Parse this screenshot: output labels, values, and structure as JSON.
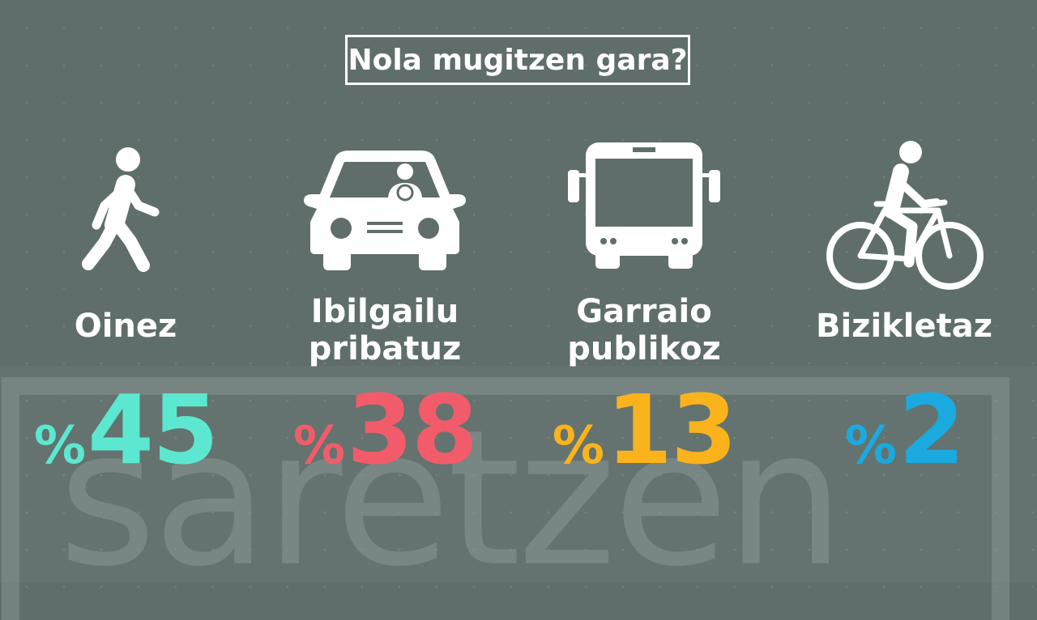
{
  "title": "Nola mugitzen gara?",
  "watermark": "saretzen",
  "categories": [
    {
      "label_line1": "Oinez",
      "label_line2": "",
      "percent_sign": "%",
      "value": "45",
      "color": "#5ce8d0",
      "icon": "walking-person-icon"
    },
    {
      "label_line1": "Ibilgailu",
      "label_line2": "pribatuz",
      "percent_sign": "%",
      "value": "38",
      "color": "#f25c6a",
      "icon": "car-icon"
    },
    {
      "label_line1": "Garraio",
      "label_line2": "publikoz",
      "percent_sign": "%",
      "value": "13",
      "color": "#fbb31c",
      "icon": "bus-icon"
    },
    {
      "label_line1": "Bizikletaz",
      "label_line2": "",
      "percent_sign": "%",
      "value": "2",
      "color": "#1aaadf",
      "icon": "bicycle-icon"
    }
  ],
  "chart_data": {
    "type": "bar",
    "title": "Nola mugitzen gara?",
    "categories": [
      "Oinez",
      "Ibilgailu pribatuz",
      "Garraio publikoz",
      "Bizikletaz"
    ],
    "values": [
      45,
      38,
      13,
      2
    ],
    "unit": "%"
  }
}
